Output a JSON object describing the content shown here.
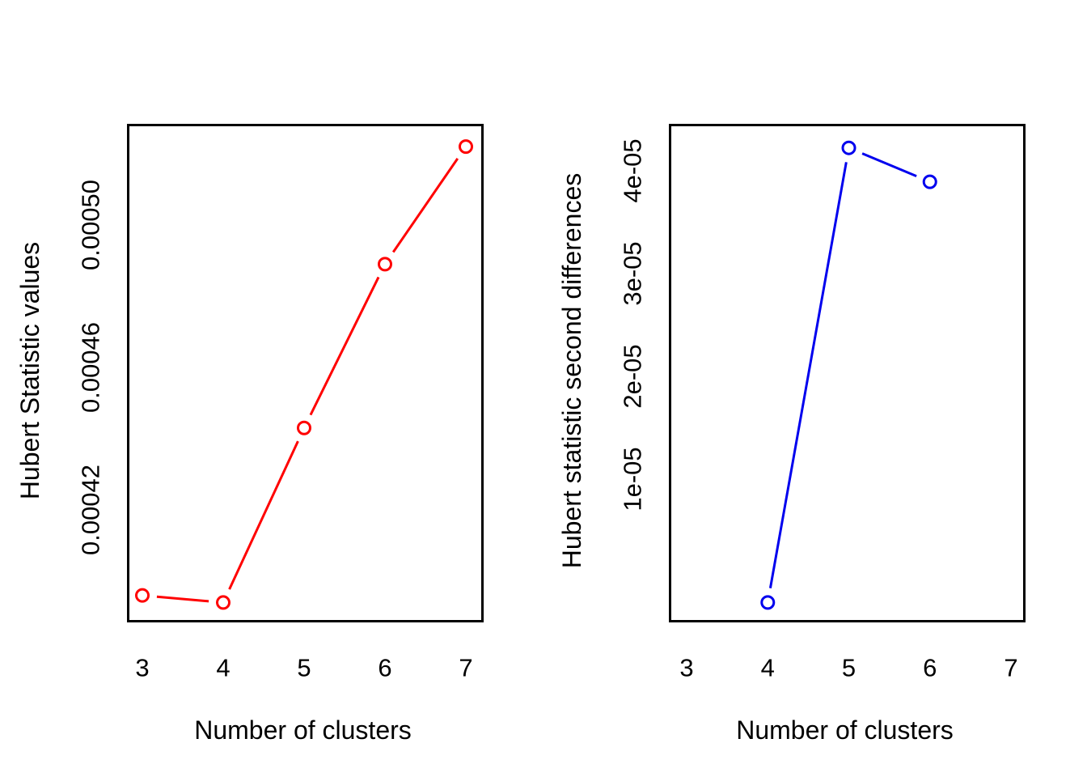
{
  "figure": {
    "background": "#ffffff",
    "box_color": "#000000",
    "text_color": "#000000"
  },
  "chart_data": [
    {
      "type": "line",
      "panel": "left",
      "title": "",
      "xlabel": "Number of clusters",
      "ylabel": "Hubert Statistic values",
      "series_color": "#ff0000",
      "marker": "open-circle",
      "style": "points-and-lines",
      "grid": false,
      "legend": null,
      "x": [
        3,
        4,
        5,
        6,
        7
      ],
      "values": [
        0.000396,
        0.000394,
        0.000443,
        0.000489,
        0.000522
      ],
      "xticks": [
        {
          "label": "3",
          "value": 3
        },
        {
          "label": "4",
          "value": 4
        },
        {
          "label": "5",
          "value": 5
        },
        {
          "label": "6",
          "value": 6
        },
        {
          "label": "7",
          "value": 7
        }
      ],
      "yticks": [
        {
          "label": "0.00042",
          "value": 0.00042
        },
        {
          "label": "0.00046",
          "value": 0.00046
        },
        {
          "label": "0.00050",
          "value": 0.0005
        }
      ],
      "xlim": [
        2.84,
        7.19
      ],
      "ylim": [
        0.0003891,
        0.0005277
      ]
    },
    {
      "type": "line",
      "panel": "right",
      "title": "",
      "xlabel": "Number of clusters",
      "ylabel": "Hubert statistic second differences",
      "series_color": "#0000ee",
      "marker": "open-circle",
      "style": "points-and-lines",
      "grid": false,
      "legend": null,
      "x": [
        4,
        5,
        6
      ],
      "values": [
        -2e-06,
        4.22e-05,
        3.89e-05
      ],
      "xticks": [
        {
          "label": "3",
          "value": 3
        },
        {
          "label": "4",
          "value": 4
        },
        {
          "label": "5",
          "value": 5
        },
        {
          "label": "6",
          "value": 6
        },
        {
          "label": "7",
          "value": 7
        }
      ],
      "yticks": [
        {
          "label": "1e-05",
          "value": 1e-05
        },
        {
          "label": "2e-05",
          "value": 2e-05
        },
        {
          "label": "3e-05",
          "value": 3e-05
        },
        {
          "label": "4e-05",
          "value": 4e-05
        }
      ],
      "xlim": [
        2.81,
        7.15
      ],
      "ylim": [
        -3.7e-06,
        4.43e-05
      ]
    }
  ]
}
